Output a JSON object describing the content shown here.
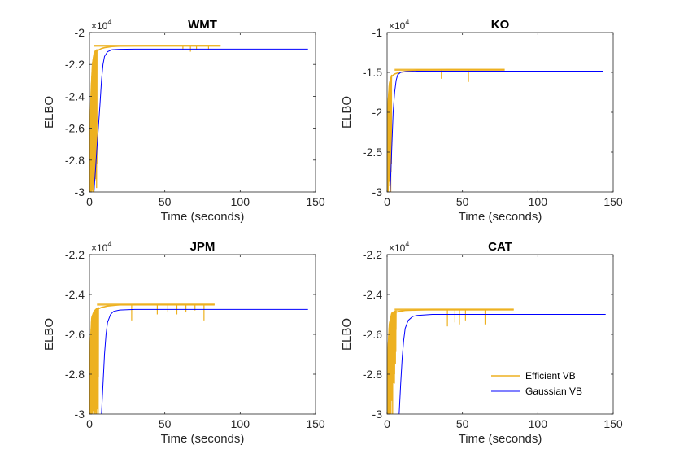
{
  "chart_data": [
    {
      "type": "line",
      "title": "WMT",
      "xlabel": "Time (seconds)",
      "ylabel": "ELBO",
      "multiplier": "×10",
      "exponent": "4",
      "xlim": [
        0,
        150
      ],
      "ylim": [
        -3,
        -2
      ],
      "xticks": [
        0,
        50,
        100,
        150
      ],
      "xtick_labels": [
        "0",
        "50",
        "100",
        "150"
      ],
      "yticks": [
        -3,
        -2.8,
        -2.6,
        -2.4,
        -2.2,
        -2
      ],
      "ytick_labels": [
        "-3",
        "-2.8",
        "-2.6",
        "-2.4",
        "-2.2",
        "-2"
      ],
      "grid": false,
      "series": [
        {
          "name": "Efficient VB",
          "color": "#EDB120",
          "x": [
            0,
            0.6,
            1.2,
            2,
            3,
            4,
            6,
            8,
            10,
            15,
            20,
            30,
            45,
            60,
            75,
            87
          ],
          "y": [
            -3.0,
            -2.55,
            -2.35,
            -2.2,
            -2.14,
            -2.12,
            -2.11,
            -2.1,
            -2.095,
            -2.088,
            -2.085,
            -2.083,
            -2.082,
            -2.082,
            -2.082,
            -2.082
          ],
          "oscillation_end": 5,
          "spikes": [
            [
              62,
              -2.11
            ],
            [
              67,
              -2.12
            ],
            [
              71,
              -2.11
            ],
            [
              79,
              -2.11
            ]
          ]
        },
        {
          "name": "Gaussian VB",
          "color": "#0000FF",
          "x": [
            3,
            5,
            7,
            8,
            9,
            10,
            12,
            15,
            20,
            30,
            60,
            100,
            145
          ],
          "y": [
            -3.0,
            -2.72,
            -2.45,
            -2.3,
            -2.2,
            -2.15,
            -2.12,
            -2.108,
            -2.105,
            -2.104,
            -2.104,
            -2.104,
            -2.104
          ],
          "oscillation_end": 0,
          "spikes": []
        }
      ]
    },
    {
      "type": "line",
      "title": "KO",
      "xlabel": "Time (seconds)",
      "ylabel": "ELBO",
      "multiplier": "×10",
      "exponent": "4",
      "xlim": [
        0,
        150
      ],
      "ylim": [
        -3,
        -1
      ],
      "xticks": [
        0,
        50,
        100,
        150
      ],
      "xtick_labels": [
        "0",
        "50",
        "100",
        "150"
      ],
      "yticks": [
        -3,
        -2.5,
        -2,
        -1.5,
        -1
      ],
      "ytick_labels": [
        "-3",
        "-2.5",
        "-2",
        "-1.5",
        "-1"
      ],
      "grid": false,
      "series": [
        {
          "name": "Efficient VB",
          "color": "#EDB120",
          "x": [
            0,
            0.6,
            1.5,
            3,
            5,
            8,
            12,
            20,
            40,
            60,
            78
          ],
          "y": [
            -2.2,
            -1.9,
            -1.65,
            -1.55,
            -1.52,
            -1.5,
            -1.49,
            -1.47,
            -1.465,
            -1.465,
            -1.465
          ],
          "oscillation_end": 3,
          "spikes": [
            [
              36,
              -1.58
            ],
            [
              54,
              -1.62
            ]
          ]
        },
        {
          "name": "Gaussian VB",
          "color": "#0000FF",
          "x": [
            2,
            3,
            4,
            5,
            6,
            7,
            9,
            12,
            20,
            50,
            100,
            143
          ],
          "y": [
            -3.0,
            -2.5,
            -2.0,
            -1.75,
            -1.6,
            -1.53,
            -1.5,
            -1.49,
            -1.485,
            -1.485,
            -1.485,
            -1.485
          ],
          "oscillation_end": 0,
          "spikes": []
        }
      ]
    },
    {
      "type": "line",
      "title": "JPM",
      "xlabel": "Time (seconds)",
      "ylabel": "ELBO",
      "multiplier": "×10",
      "exponent": "4",
      "xlim": [
        0,
        150
      ],
      "ylim": [
        -3,
        -2.2
      ],
      "xticks": [
        0,
        50,
        100,
        150
      ],
      "xtick_labels": [
        "0",
        "50",
        "100",
        "150"
      ],
      "yticks": [
        -3,
        -2.8,
        -2.6,
        -2.4,
        -2.2
      ],
      "ytick_labels": [
        "-3",
        "-2.8",
        "-2.6",
        "-2.4",
        "-2.2"
      ],
      "grid": false,
      "series": [
        {
          "name": "Efficient VB",
          "color": "#EDB120",
          "x": [
            0,
            0.6,
            1.5,
            3,
            5,
            8,
            12,
            20,
            40,
            60,
            83
          ],
          "y": [
            -3.0,
            -2.65,
            -2.52,
            -2.49,
            -2.475,
            -2.465,
            -2.458,
            -2.452,
            -2.45,
            -2.45,
            -2.45
          ],
          "oscillation_end": 6,
          "spikes": [
            [
              28,
              -2.53
            ],
            [
              45,
              -2.5
            ],
            [
              52,
              -2.49
            ],
            [
              58,
              -2.5
            ],
            [
              64,
              -2.49
            ],
            [
              70,
              -2.48
            ],
            [
              76,
              -2.53
            ]
          ]
        },
        {
          "name": "Gaussian VB",
          "color": "#0000FF",
          "x": [
            8,
            9,
            10,
            11,
            12,
            14,
            16,
            20,
            30,
            60,
            100,
            145
          ],
          "y": [
            -3.0,
            -2.85,
            -2.7,
            -2.6,
            -2.54,
            -2.5,
            -2.485,
            -2.478,
            -2.475,
            -2.475,
            -2.475,
            -2.475
          ],
          "oscillation_end": 0,
          "spikes": []
        }
      ]
    },
    {
      "type": "line",
      "title": "CAT",
      "xlabel": "Time (seconds)",
      "ylabel": "ELBO",
      "multiplier": "×10",
      "exponent": "4",
      "xlim": [
        0,
        150
      ],
      "ylim": [
        -3,
        -2.2
      ],
      "xticks": [
        0,
        50,
        100,
        150
      ],
      "xtick_labels": [
        "0",
        "50",
        "100",
        "150"
      ],
      "yticks": [
        -3,
        -2.8,
        -2.6,
        -2.4,
        -2.2
      ],
      "ytick_labels": [
        "-3",
        "-2.8",
        "-2.6",
        "-2.4",
        "-2.2"
      ],
      "grid": false,
      "legend": {
        "location": "bottom-right",
        "entries": [
          "Efficient VB",
          "Gaussian VB"
        ]
      },
      "series": [
        {
          "name": "Efficient VB",
          "color": "#EDB120",
          "x": [
            0,
            0.6,
            1.5,
            3,
            5,
            8,
            12,
            20,
            30,
            50,
            84
          ],
          "y": [
            -3.0,
            -2.68,
            -2.55,
            -2.5,
            -2.49,
            -2.485,
            -2.48,
            -2.478,
            -2.475,
            -2.475,
            -2.475
          ],
          "oscillation_end": 6,
          "spikes": [
            [
              40,
              -2.56
            ],
            [
              45,
              -2.54
            ],
            [
              48,
              -2.55
            ],
            [
              52,
              -2.53
            ],
            [
              65,
              -2.55
            ]
          ]
        },
        {
          "name": "Gaussian VB",
          "color": "#0000FF",
          "x": [
            8,
            9,
            10,
            11,
            12,
            14,
            17,
            20,
            30,
            60,
            100,
            145
          ],
          "y": [
            -3.0,
            -2.85,
            -2.72,
            -2.63,
            -2.57,
            -2.53,
            -2.51,
            -2.505,
            -2.5,
            -2.5,
            -2.5,
            -2.5
          ],
          "oscillation_end": 0,
          "spikes": []
        }
      ]
    }
  ]
}
